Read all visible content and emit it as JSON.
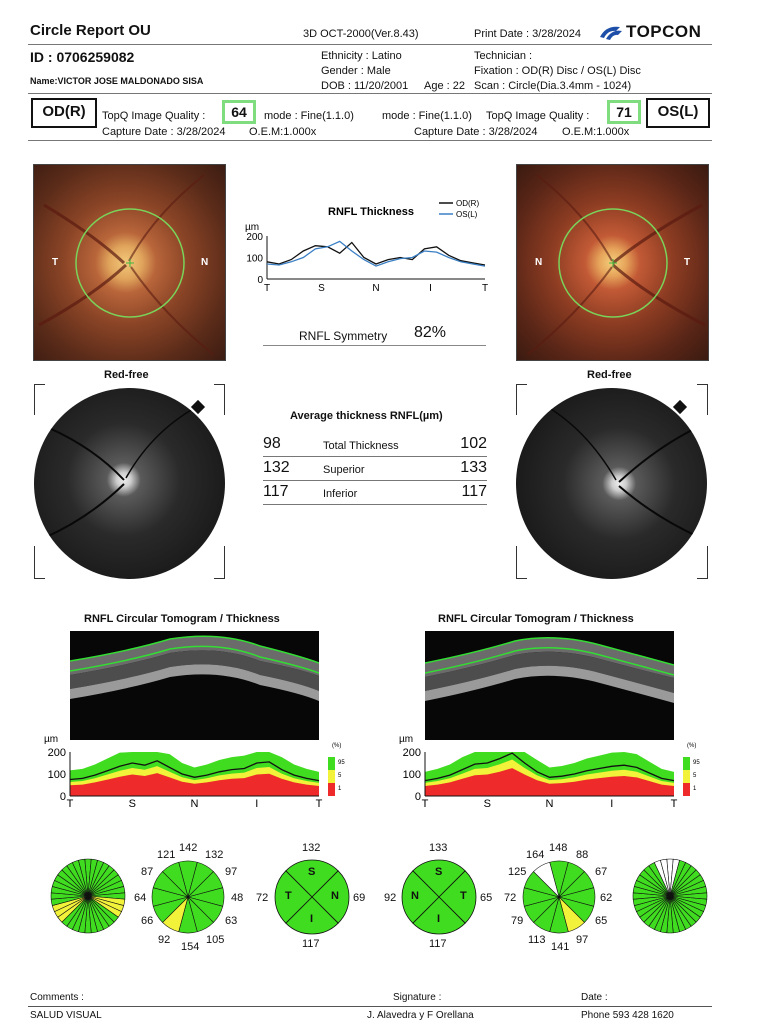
{
  "header": {
    "title": "Circle Report OU",
    "device": "3D OCT-2000(Ver.8.43)",
    "print_date": "Print Date : 3/28/2024",
    "brand": "TOPCON",
    "id": "ID : 0706259082",
    "name": "Name:VICTOR JOSE MALDONADO SISA",
    "ethnicity": "Ethnicity : Latino",
    "gender": "Gender : Male",
    "dob": "DOB : 11/20/2001",
    "age": "Age : 22",
    "technician": "Technician :",
    "fixation": "Fixation : OD(R) Disc / OS(L) Disc",
    "scan": "Scan : Circle(Dia.3.4mm - 1024)"
  },
  "od": {
    "label": "OD(R)",
    "quality_label": "TopQ Image Quality :",
    "quality": "64",
    "mode": "mode : Fine(1.1.0)",
    "capture": "Capture Date :  3/28/2024",
    "oem": "O.E.M:1.000x",
    "t": "T",
    "n": "N"
  },
  "os": {
    "label": "OS(L)",
    "quality_label": "TopQ Image Quality :",
    "quality": "71",
    "mode": "mode : Fine(1.1.0)",
    "capture": "Capture Date :  3/28/2024",
    "oem": "O.E.M:1.000x",
    "t": "T",
    "n": "N"
  },
  "chart_data": [
    {
      "type": "line",
      "title": "RNFL Thickness",
      "ylabel": "µm",
      "ylim": [
        0,
        200
      ],
      "yticks": [
        "200",
        "100",
        "0"
      ],
      "x_ticks": [
        "T",
        "S",
        "N",
        "I",
        "T"
      ],
      "series": [
        {
          "name": "OD(R)",
          "color": "#111111",
          "values": [
            80,
            70,
            90,
            130,
            155,
            150,
            120,
            170,
            100,
            70,
            90,
            100,
            90,
            140,
            150,
            110,
            85,
            75,
            65
          ]
        },
        {
          "name": "OS(L)",
          "color": "#3a7fc4",
          "values": [
            70,
            65,
            80,
            100,
            140,
            150,
            175,
            130,
            90,
            60,
            80,
            95,
            100,
            130,
            125,
            100,
            80,
            70,
            60
          ]
        }
      ]
    },
    {
      "type": "area",
      "title": "RNFL Circular Tomogram / Thickness",
      "eye": "OD",
      "ylabel": "µm",
      "ylim": [
        0,
        200
      ],
      "yticks": [
        "200",
        "100",
        "0"
      ],
      "x_ticks": [
        "T",
        "S",
        "N",
        "I",
        "T"
      ],
      "legend_title": "(%)",
      "legend": [
        "95",
        "5",
        "1"
      ],
      "values": [
        75,
        80,
        95,
        115,
        135,
        150,
        140,
        160,
        130,
        100,
        85,
        95,
        110,
        120,
        125,
        150,
        155,
        120,
        95,
        80,
        70
      ]
    },
    {
      "type": "area",
      "title": "RNFL Circular Tomogram / Thickness",
      "eye": "OS",
      "ylabel": "µm",
      "ylim": [
        0,
        200
      ],
      "yticks": [
        "200",
        "100",
        "0"
      ],
      "x_ticks": [
        "T",
        "S",
        "N",
        "I",
        "T"
      ],
      "legend_title": "(%)",
      "legend": [
        "95",
        "5",
        "1"
      ],
      "values": [
        70,
        80,
        95,
        120,
        145,
        150,
        170,
        195,
        150,
        110,
        85,
        90,
        100,
        115,
        125,
        135,
        140,
        130,
        105,
        80,
        70
      ]
    }
  ],
  "symmetry": {
    "label": "RNFL Symmetry",
    "value": "82%"
  },
  "average": {
    "title": "Average thickness RNFL(µm)",
    "rows": [
      {
        "od": "98",
        "label": "Total Thickness",
        "os": "102"
      },
      {
        "od": "132",
        "label": "Superior",
        "os": "133"
      },
      {
        "od": "117",
        "label": "Inferior",
        "os": "117"
      }
    ]
  },
  "redfree_label": "Red-free",
  "tomogram_title": "RNFL Circular Tomogram / Thickness",
  "od_clock": {
    "top": "142",
    "tr": "132",
    "r1": "97",
    "r2": "48",
    "r3": "63",
    "br": "105",
    "bottom": "154",
    "bl": "92",
    "l1": "66",
    "l2": "64",
    "l3": "87",
    "tl": "121"
  },
  "os_clock": {
    "top": "148",
    "tr": "88",
    "r1": "67",
    "r2": "62",
    "r3": "65",
    "br": "97",
    "bottom": "141",
    "bl": "113",
    "l1": "79",
    "l2": "72",
    "l3": "125",
    "tl": "164"
  },
  "od_quadrant": {
    "top": "132",
    "left": "72",
    "right": "69",
    "bottom": "117",
    "s": "S",
    "t": "T",
    "n": "N",
    "i": "I"
  },
  "os_quadrant": {
    "top": "133",
    "left": "92",
    "right": "65",
    "bottom": "117",
    "s": "S",
    "n": "N",
    "t": "T",
    "i": "I"
  },
  "footer": {
    "comments": "Comments :",
    "signature": "Signature :",
    "date": "Date :",
    "clinic": "SALUD VISUAL",
    "doctors": "J. Alavedra y F Orellana",
    "phone": "Phone 593 428 1620"
  }
}
